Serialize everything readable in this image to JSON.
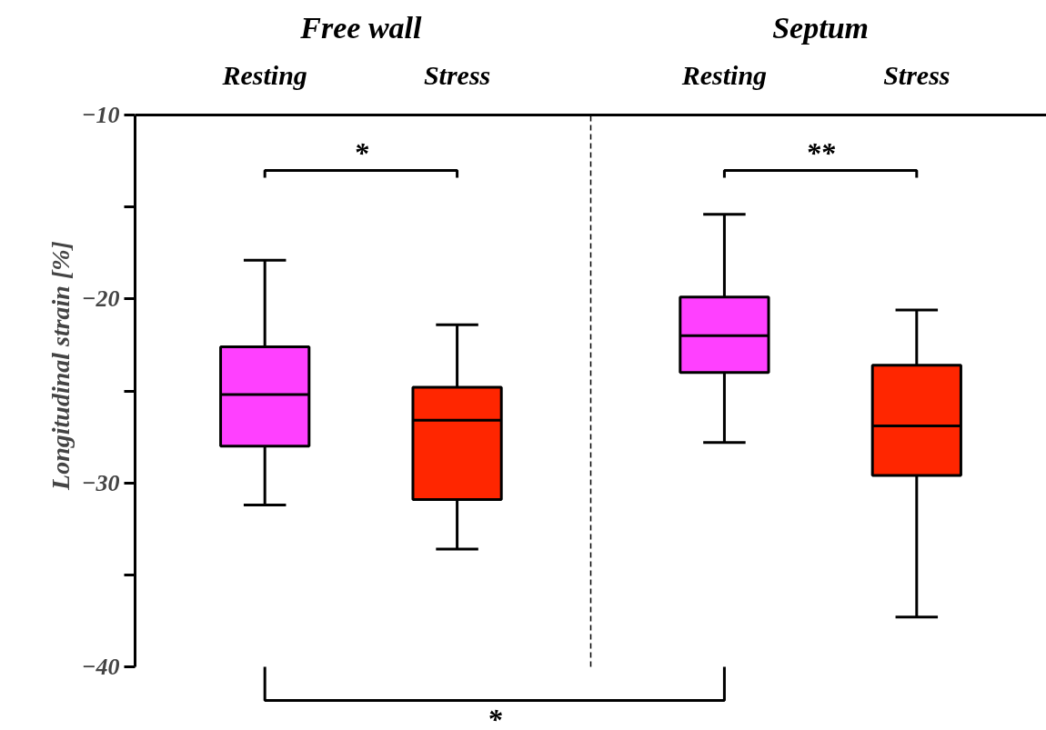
{
  "chart_data": {
    "type": "box",
    "ylabel": "Longitudinal strain [%]",
    "categories": [
      "Resting",
      "Stress",
      "Resting",
      "Stress"
    ],
    "colors": [
      "#ff40ff",
      "#ff2600",
      "#ff40ff",
      "#ff2600"
    ],
    "boxes": [
      {
        "low": -31.2,
        "q1": -28.0,
        "median": -25.2,
        "q3": -22.6,
        "high": -17.9
      },
      {
        "low": -33.6,
        "q1": -30.9,
        "median": -26.6,
        "q3": -24.8,
        "high": -21.4
      },
      {
        "low": -27.8,
        "q1": -24.0,
        "median": -22.0,
        "q3": -19.9,
        "high": -15.4
      },
      {
        "low": -37.3,
        "q1": -29.6,
        "median": -26.9,
        "q3": -23.6,
        "high": -20.6
      }
    ],
    "ylim": [
      -40,
      -10
    ],
    "yticks": [
      -40,
      -30,
      -20,
      -10,
      {
        "value": -35,
        "label": null
      },
      {
        "value": -25,
        "label": null
      },
      {
        "value": -15,
        "label": null
      }
    ],
    "annotations": [
      "Free wall",
      "Septum",
      "*",
      "**",
      "*"
    ],
    "grid": false
  }
}
